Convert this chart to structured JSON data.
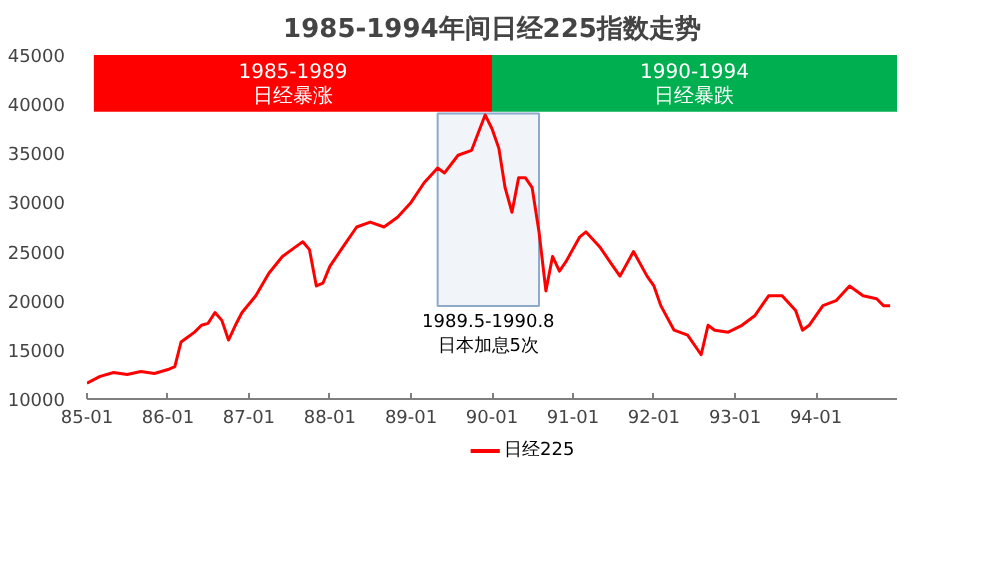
{
  "chart_data": {
    "type": "line",
    "title": "1985-1994年间日经225指数走势",
    "x": [
      "1985-01",
      "1985-03",
      "1985-05",
      "1985-07",
      "1985-09",
      "1985-11",
      "1986-01",
      "1986-02",
      "1986-03",
      "1986-04",
      "1986-05",
      "1986-06",
      "1986-07",
      "1986-08",
      "1986-09",
      "1986-10",
      "1986-11",
      "1986-12",
      "1987-02",
      "1987-04",
      "1987-06",
      "1987-08",
      "1987-09",
      "1987-10",
      "1987-11",
      "1987-12",
      "1988-01",
      "1988-03",
      "1988-05",
      "1988-07",
      "1988-09",
      "1988-11",
      "1989-01",
      "1989-03",
      "1989-05",
      "1989-06",
      "1989-08",
      "1989-10",
      "1989-12",
      "1990-01",
      "1990-02",
      "1990-03",
      "1990-04",
      "1990-05",
      "1990-06",
      "1990-07",
      "1990-08",
      "1990-09",
      "1990-10",
      "1990-11",
      "1990-12",
      "1991-02",
      "1991-03",
      "1991-05",
      "1991-07",
      "1991-08",
      "1991-10",
      "1991-12",
      "1992-01",
      "1992-02",
      "1992-04",
      "1992-06",
      "1992-08",
      "1992-09",
      "1992-10",
      "1992-12",
      "1993-02",
      "1993-04",
      "1993-06",
      "1993-08",
      "1993-10",
      "1993-11",
      "1993-12",
      "1994-02",
      "1994-04",
      "1994-06",
      "1994-08",
      "1994-10",
      "1994-11",
      "1994-12"
    ],
    "series": [
      {
        "name": "日经225",
        "color": "#ff0000",
        "values": [
          11600,
          12300,
          12700,
          12500,
          12800,
          12600,
          13000,
          13300,
          15800,
          16300,
          16800,
          17500,
          17700,
          18800,
          18000,
          16000,
          17500,
          18800,
          20500,
          22800,
          24500,
          25500,
          26000,
          25200,
          21500,
          21800,
          23500,
          25500,
          27500,
          28000,
          27500,
          28500,
          30000,
          32000,
          33500,
          33000,
          34800,
          35300,
          38900,
          37500,
          35500,
          31500,
          29000,
          32500,
          32500,
          31500,
          27000,
          21000,
          24500,
          23000,
          24000,
          26500,
          27000,
          25500,
          23500,
          22500,
          25000,
          22500,
          21500,
          19500,
          17000,
          16500,
          14500,
          17500,
          17000,
          16800,
          17500,
          18500,
          20500,
          20500,
          19000,
          17000,
          17500,
          19500,
          20000,
          21500,
          20500,
          20200,
          19500,
          19500
        ]
      }
    ],
    "xlim": [
      "1985-01",
      "1995-01"
    ],
    "xticks": [
      {
        "value": "1985-01",
        "label": "85-01"
      },
      {
        "value": "1986-01",
        "label": "86-01"
      },
      {
        "value": "1987-01",
        "label": "87-01"
      },
      {
        "value": "1988-01",
        "label": "88-01"
      },
      {
        "value": "1989-01",
        "label": "89-01"
      },
      {
        "value": "1990-01",
        "label": "90-01"
      },
      {
        "value": "1991-01",
        "label": "91-01"
      },
      {
        "value": "1992-01",
        "label": "92-01"
      },
      {
        "value": "1993-01",
        "label": "93-01"
      },
      {
        "value": "1994-01",
        "label": "94-01"
      }
    ],
    "ylim": [
      10000,
      45000
    ],
    "yticks": [
      10000,
      15000,
      20000,
      25000,
      30000,
      35000,
      40000,
      45000
    ],
    "bands": [
      {
        "axis": "x",
        "from": "1985-02",
        "to": "1990-01",
        "label": "1985-1989\n日经暴涨",
        "color": "#ff0000"
      },
      {
        "axis": "x",
        "from": "1990-01",
        "to": "1995-01",
        "label": "1990-1994\n日经暴跌",
        "color": "#00b050"
      },
      {
        "axis": "x",
        "from": "1989-05",
        "to": "1990-08",
        "label": "1989.5-1990.8\n日本加息5次",
        "color": "#8eaacb"
      }
    ],
    "grid": false,
    "legend": "bottom",
    "line_style": "solid",
    "marker": "none"
  }
}
